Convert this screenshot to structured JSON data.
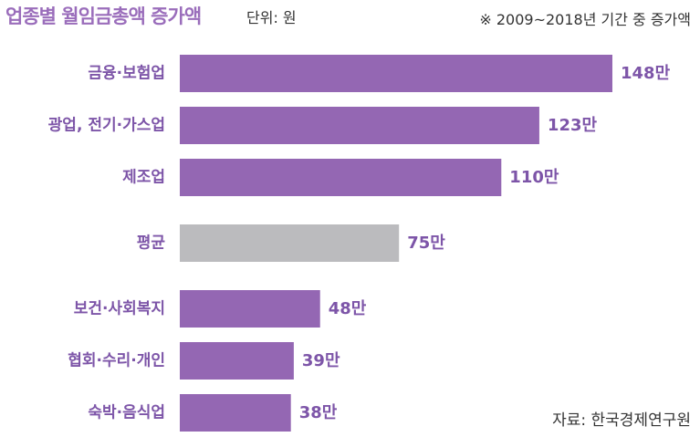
{
  "header": {
    "title": "업종별 월임금총액 증가액",
    "unit": "단위: 원",
    "note": "※ 2009~2018년 기간 중 증가액"
  },
  "footer": {
    "source": "자료: 한국경제연구원"
  },
  "colors": {
    "bar": "#9467b3",
    "average_bar": "#bbbbbe",
    "label": "#7d55a8"
  },
  "chart_data": {
    "type": "bar",
    "orientation": "horizontal",
    "title": "업종별 월임금총액 증가액",
    "unit": "원",
    "categories": [
      "금융·보험업",
      "광업, 전기·가스업",
      "제조업",
      "평균",
      "보건·사회복지",
      "협회·수리·개인",
      "숙박·음식업"
    ],
    "values": [
      148,
      123,
      110,
      75,
      48,
      39,
      38
    ],
    "value_labels": [
      "148만",
      "123만",
      "110만",
      "75만",
      "48만",
      "39만",
      "38만"
    ],
    "highlight_category": "평균",
    "xlim": [
      0,
      150
    ],
    "grid": false,
    "legend": "none"
  }
}
